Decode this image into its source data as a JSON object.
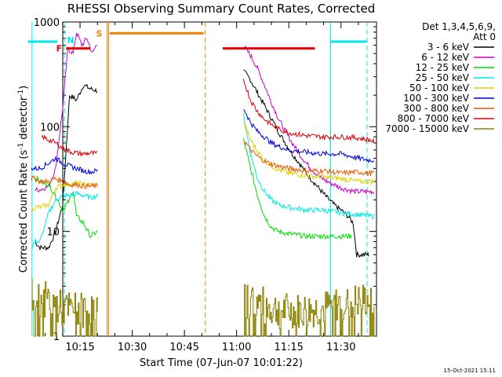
{
  "chart_data": {
    "type": "line",
    "title": "RHESSI Observing Summary Count Rates, Corrected",
    "xlabel": "Start Time (07-Jun-07 10:01:22)",
    "ylabel_main": "Corrected Count Rate (s",
    "ylabel_sup1": "-1",
    "ylabel_mid": " detector",
    "ylabel_sup2": "-1",
    "ylabel_end": ")",
    "y_scale": "log",
    "ylim": [
      1,
      1000
    ],
    "xlim_minutes": [
      10.03,
      11.67
    ],
    "x_ticks": [
      {
        "m": 15,
        "label": "10:15"
      },
      {
        "m": 30,
        "label": "10:30"
      },
      {
        "m": 45,
        "label": "10:45"
      },
      {
        "m": 60,
        "label": "11:00"
      },
      {
        "m": 75,
        "label": "11:15"
      },
      {
        "m": 90,
        "label": "11:30"
      }
    ],
    "y_ticks": [
      {
        "v": 1,
        "label": "1"
      },
      {
        "v": 10,
        "label": "10"
      },
      {
        "v": 100,
        "label": "100"
      },
      {
        "v": 1000,
        "label": "1000"
      }
    ],
    "legend_header": [
      "Det 1,3,4,5,6,9,",
      "Att 0"
    ],
    "legend_placement": "right",
    "timestamp": "15-Oct-2021 15:11",
    "series": [
      {
        "name": "3 - 6 keV",
        "color": "#000000",
        "seg1": [
          [
            2,
            8
          ],
          [
            3.5,
            7
          ],
          [
            6,
            7
          ],
          [
            8,
            10
          ],
          [
            10,
            18
          ],
          [
            12,
            200
          ],
          [
            14,
            180
          ],
          [
            16,
            250
          ],
          [
            18,
            230
          ],
          [
            20,
            220
          ]
        ],
        "seg2": [
          [
            62,
            340
          ],
          [
            64,
            280
          ],
          [
            66,
            210
          ],
          [
            68,
            160
          ],
          [
            70,
            120
          ],
          [
            72,
            90
          ],
          [
            74,
            70
          ],
          [
            76,
            55
          ],
          [
            78,
            45
          ],
          [
            80,
            36
          ],
          [
            82,
            30
          ],
          [
            84,
            25
          ],
          [
            86,
            21
          ],
          [
            88,
            18
          ],
          [
            90,
            16
          ],
          [
            92,
            14
          ],
          [
            93.5,
            12
          ],
          [
            94.5,
            6
          ],
          [
            96,
            6
          ],
          [
            97,
            6
          ],
          [
            98,
            6
          ]
        ]
      },
      {
        "name": "6 - 12 keV",
        "color": "#cc00cc",
        "seg1": [
          [
            2,
            25
          ],
          [
            3.5,
            25
          ],
          [
            6,
            27
          ],
          [
            8,
            40
          ],
          [
            10,
            150
          ],
          [
            11.5,
            560
          ],
          [
            13,
            500
          ],
          [
            14,
            800
          ],
          [
            15.5,
            600
          ],
          [
            17,
            700
          ],
          [
            18.5,
            500
          ],
          [
            20,
            630
          ]
        ],
        "seg2": [
          [
            62,
            590
          ],
          [
            64,
            480
          ],
          [
            66,
            360
          ],
          [
            68,
            250
          ],
          [
            70,
            170
          ],
          [
            72,
            120
          ],
          [
            74,
            90
          ],
          [
            76,
            70
          ],
          [
            78,
            55
          ],
          [
            80,
            45
          ],
          [
            82,
            38
          ],
          [
            84,
            33
          ],
          [
            86,
            30
          ],
          [
            88,
            28
          ],
          [
            90,
            26
          ],
          [
            92,
            25
          ],
          [
            94,
            24
          ],
          [
            96,
            24
          ],
          [
            98,
            24
          ],
          [
            99.5,
            24
          ]
        ]
      },
      {
        "name": "12 - 25 keV",
        "color": "#00dd00",
        "seg1": [
          [
            2,
            33
          ],
          [
            3.5,
            30
          ],
          [
            6,
            28
          ],
          [
            8,
            22
          ],
          [
            10,
            16
          ],
          [
            12,
            20
          ],
          [
            13,
            25
          ],
          [
            14,
            14
          ],
          [
            16,
            12
          ],
          [
            18,
            9
          ],
          [
            20,
            10
          ]
        ],
        "seg2": [
          [
            62,
            75
          ],
          [
            64,
            40
          ],
          [
            66,
            22
          ],
          [
            68,
            14
          ],
          [
            70,
            11
          ],
          [
            72,
            10
          ],
          [
            75,
            9.5
          ],
          [
            80,
            9
          ],
          [
            85,
            9
          ],
          [
            90,
            9
          ],
          [
            92,
            9
          ],
          [
            93,
            9
          ]
        ]
      },
      {
        "name": "25 - 50 keV",
        "color": "#00e8e8",
        "seg1": [
          [
            1,
            7
          ],
          [
            2,
            8
          ],
          [
            3.5,
            8
          ],
          [
            6,
            15
          ],
          [
            8,
            20
          ],
          [
            10,
            22
          ],
          [
            12,
            22
          ],
          [
            14,
            23
          ],
          [
            16,
            22
          ],
          [
            18,
            21
          ],
          [
            20,
            22
          ]
        ],
        "seg2": [
          [
            62,
            130
          ],
          [
            64,
            55
          ],
          [
            66,
            32
          ],
          [
            68,
            24
          ],
          [
            70,
            20
          ],
          [
            72,
            18
          ],
          [
            75,
            17
          ],
          [
            80,
            16
          ],
          [
            85,
            16
          ],
          [
            90,
            15
          ],
          [
            95,
            14.5
          ],
          [
            98,
            14
          ],
          [
            99.5,
            14
          ]
        ]
      },
      {
        "name": "50 - 100 keV",
        "color": "#e0d000",
        "seg1": [
          [
            1,
            16
          ],
          [
            2,
            17
          ],
          [
            3.5,
            17
          ],
          [
            6,
            18
          ],
          [
            8,
            26
          ],
          [
            10,
            28
          ],
          [
            12,
            28
          ],
          [
            14,
            29
          ],
          [
            16,
            28
          ],
          [
            18,
            28
          ],
          [
            20,
            28
          ]
        ],
        "seg2": [
          [
            62,
            110
          ],
          [
            64,
            75
          ],
          [
            66,
            58
          ],
          [
            68,
            48
          ],
          [
            70,
            42
          ],
          [
            72,
            39
          ],
          [
            75,
            36
          ],
          [
            80,
            34
          ],
          [
            85,
            33
          ],
          [
            90,
            32
          ],
          [
            95,
            30
          ],
          [
            98,
            30
          ],
          [
            99.5,
            30
          ]
        ]
      },
      {
        "name": "100 - 300 keV",
        "color": "#0000dd",
        "seg1": [
          [
            1,
            40
          ],
          [
            2,
            40
          ],
          [
            3.5,
            40
          ],
          [
            6,
            45
          ],
          [
            8,
            50
          ],
          [
            10,
            45
          ],
          [
            12,
            42
          ],
          [
            14,
            40
          ],
          [
            16,
            38
          ],
          [
            18,
            37
          ],
          [
            20,
            38
          ]
        ],
        "seg2": [
          [
            62,
            150
          ],
          [
            64,
            110
          ],
          [
            66,
            90
          ],
          [
            68,
            80
          ],
          [
            70,
            70
          ],
          [
            72,
            65
          ],
          [
            75,
            60
          ],
          [
            80,
            57
          ],
          [
            85,
            55
          ],
          [
            90,
            55
          ],
          [
            95,
            50
          ],
          [
            98,
            48
          ],
          [
            99.5,
            48
          ]
        ]
      },
      {
        "name": "300 - 800 keV",
        "color": "#e85800",
        "seg1": [
          [
            1,
            32
          ],
          [
            2,
            32
          ],
          [
            3.5,
            30
          ],
          [
            6,
            30
          ],
          [
            8,
            32
          ],
          [
            10,
            30
          ],
          [
            12,
            28
          ],
          [
            14,
            28
          ],
          [
            16,
            27
          ],
          [
            18,
            27
          ],
          [
            20,
            27
          ]
        ],
        "seg2": [
          [
            62,
            75
          ],
          [
            64,
            60
          ],
          [
            66,
            52
          ],
          [
            68,
            47
          ],
          [
            70,
            44
          ],
          [
            72,
            42
          ],
          [
            75,
            40
          ],
          [
            80,
            38
          ],
          [
            85,
            38
          ],
          [
            90,
            36
          ],
          [
            95,
            37
          ],
          [
            98,
            36
          ],
          [
            99.5,
            36
          ]
        ]
      },
      {
        "name": "800 - 7000 keV",
        "color": "#dd0000",
        "seg1": [
          [
            4,
            80
          ],
          [
            6,
            75
          ],
          [
            8,
            70
          ],
          [
            10,
            62
          ],
          [
            12,
            58
          ],
          [
            14,
            56
          ],
          [
            16,
            55
          ],
          [
            18,
            56
          ],
          [
            20,
            55
          ]
        ],
        "seg2": [
          [
            62,
            280
          ],
          [
            64,
            180
          ],
          [
            66,
            140
          ],
          [
            68,
            118
          ],
          [
            70,
            105
          ],
          [
            72,
            95
          ],
          [
            75,
            88
          ],
          [
            80,
            82
          ],
          [
            85,
            80
          ],
          [
            90,
            80
          ],
          [
            95,
            78
          ],
          [
            98,
            75
          ],
          [
            99.5,
            72
          ]
        ]
      },
      {
        "name": "7000 - 15000 keV",
        "color": "#8b8000",
        "seg1": [
          [
            1,
            2.4
          ],
          [
            3,
            2.3
          ],
          [
            6,
            2.2
          ],
          [
            10,
            1.8
          ],
          [
            14,
            1.8
          ],
          [
            18,
            1.7
          ],
          [
            20,
            1.8
          ]
        ],
        "seg2": [
          [
            62,
            2.2
          ],
          [
            66,
            2.1
          ],
          [
            70,
            1.8
          ],
          [
            75,
            1.7
          ],
          [
            80,
            1.7
          ],
          [
            85,
            1.8
          ],
          [
            90,
            2
          ],
          [
            95,
            2.1
          ],
          [
            98,
            2.2
          ],
          [
            99.5,
            2.1
          ]
        ]
      }
    ],
    "attenuator_bars": [
      {
        "m1": 0,
        "m2": 8.5,
        "v": 650,
        "color": "#00e8e8"
      },
      {
        "m1": 87,
        "m2": 97.5,
        "v": 650,
        "color": "#00e8e8"
      },
      {
        "m1": 23.5,
        "m2": 50.5,
        "v": 780,
        "color": "#f08000"
      },
      {
        "m1": 56,
        "m2": 82.5,
        "v": 560,
        "color": "#ee0000"
      },
      {
        "m1": 11,
        "m2": 18,
        "v": 560,
        "color": "#ee0000"
      }
    ],
    "flags": [
      {
        "text": "F",
        "m": 9,
        "v": 560,
        "color": "#ee0000"
      },
      {
        "text": "N",
        "m": 12.3,
        "v": 670,
        "color": "#00e8e8"
      },
      {
        "text": "S",
        "m": 20.5,
        "v": 780,
        "color": "#f08000"
      }
    ],
    "vlines": [
      {
        "m": 10.5,
        "color": "#00e8e8",
        "dash": true
      },
      {
        "m": 87,
        "color": "#00e8e8",
        "dash": false
      },
      {
        "m": 97.5,
        "color": "#00e8e8",
        "dash": true
      },
      {
        "m": 22.8,
        "color": "#f08000",
        "dash": false
      },
      {
        "m": 51,
        "color": "#f08000",
        "dash": true
      },
      {
        "m": 1.2,
        "color": "#00e8e8",
        "dash": false
      }
    ],
    "gaps": [
      {
        "m1": 23.2,
        "m2": 52,
        "color": "#f08000"
      }
    ]
  }
}
